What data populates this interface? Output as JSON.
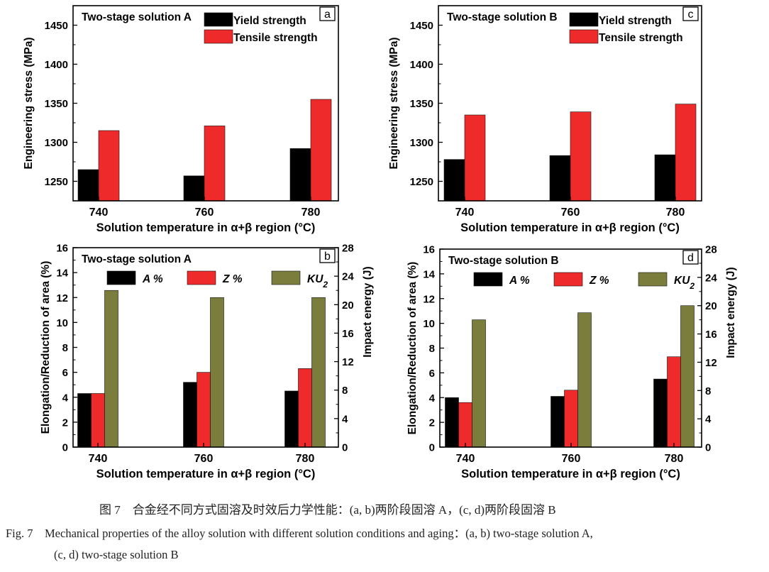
{
  "chart_data": [
    {
      "panel_tag": "a",
      "type": "bar",
      "title": "Two-stage solution A",
      "xlabel": "Solution temperature in α+β region (°C)",
      "ylabel": "Engineering stress (MPa)",
      "categories": [
        "740",
        "760",
        "780"
      ],
      "ylim": [
        1225,
        1475
      ],
      "yticks": [
        "1250",
        "1300",
        "1350",
        "1400",
        "1450"
      ],
      "series": [
        {
          "name": "Yield strength",
          "color": "#000000",
          "values": [
            1265,
            1257,
            1292
          ]
        },
        {
          "name": "Tensile strength",
          "color": "#ee2a2a",
          "values": [
            1315,
            1321,
            1355
          ]
        }
      ],
      "legend": "top-right"
    },
    {
      "panel_tag": "b",
      "type": "bar",
      "title": "Two-stage solution A",
      "xlabel": "Solution temperature in α+β region (°C)",
      "ylabel": "Elongation/Reduction of area (%)",
      "y2label": "Impact energy (J)",
      "categories": [
        "740",
        "760",
        "780"
      ],
      "ylim": [
        0,
        16
      ],
      "y2lim": [
        0,
        28
      ],
      "yticks": [
        "0",
        "2",
        "4",
        "6",
        "8",
        "10",
        "12",
        "14",
        "16"
      ],
      "y2ticks": [
        "0",
        "4",
        "8",
        "12",
        "16",
        "20",
        "24",
        "28"
      ],
      "series": [
        {
          "name": "A %",
          "color": "#000000",
          "axis": "left",
          "values": [
            4.3,
            5.2,
            4.5
          ]
        },
        {
          "name": "Z %",
          "color": "#ee2a2a",
          "axis": "left",
          "values": [
            4.3,
            6.0,
            6.3
          ]
        },
        {
          "name": "KU",
          "sub": "2",
          "color": "#7b7d3c",
          "axis": "right",
          "values": [
            22.0,
            21.0,
            21.0
          ]
        }
      ],
      "legend": "top"
    },
    {
      "panel_tag": "c",
      "type": "bar",
      "title": "Two-stage solution B",
      "xlabel": "Solution temperature in α+β region (°C)",
      "ylabel": "Engineering stress (MPa)",
      "categories": [
        "740",
        "760",
        "780"
      ],
      "ylim": [
        1225,
        1475
      ],
      "yticks": [
        "1250",
        "1300",
        "1350",
        "1400",
        "1450"
      ],
      "series": [
        {
          "name": "Yield strength",
          "color": "#000000",
          "values": [
            1278,
            1283,
            1284
          ]
        },
        {
          "name": "Tensile strength",
          "color": "#ee2a2a",
          "values": [
            1335,
            1339,
            1349
          ]
        }
      ],
      "legend": "top-right"
    },
    {
      "panel_tag": "d",
      "type": "bar",
      "title": "Two-stage solution B",
      "xlabel": "Solution temperature in α+β region (°C)",
      "ylabel": "Elongation/Reduction of area (%)",
      "y2label": "Impact energy (J)",
      "categories": [
        "740",
        "760",
        "780"
      ],
      "ylim": [
        0,
        16
      ],
      "y2lim": [
        0,
        28
      ],
      "yticks": [
        "0",
        "2",
        "4",
        "6",
        "8",
        "10",
        "12",
        "14",
        "16"
      ],
      "y2ticks": [
        "0",
        "4",
        "8",
        "12",
        "16",
        "20",
        "24",
        "28"
      ],
      "series": [
        {
          "name": "A %",
          "color": "#000000",
          "axis": "left",
          "values": [
            4.0,
            4.1,
            5.5
          ]
        },
        {
          "name": "Z %",
          "color": "#ee2a2a",
          "axis": "left",
          "values": [
            3.6,
            4.6,
            7.3
          ]
        },
        {
          "name": "KU",
          "sub": "2",
          "color": "#7b7d3c",
          "axis": "right",
          "values": [
            18.0,
            19.0,
            20.0
          ]
        }
      ],
      "legend": "top"
    }
  ],
  "caption": {
    "cn": "图 7　合金经不同方式固溶及时效后力学性能：(a, b)两阶段固溶 A，(c, d)两阶段固溶 B",
    "en_line1": "Fig. 7　Mechanical properties of the alloy solution with different solution conditions and aging：(a, b) two-stage solution A,",
    "en_line2": "(c, d) two-stage solution B"
  }
}
